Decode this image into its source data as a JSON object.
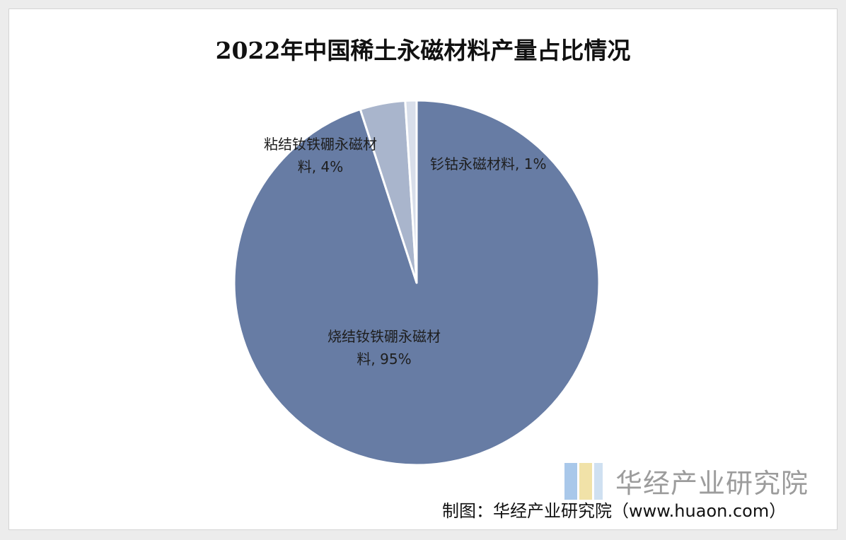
{
  "chart_data": {
    "type": "pie",
    "title": "2022年中国稀土永磁材料产量占比情况",
    "slices": [
      {
        "name": "烧结钕铁硼永磁材料",
        "value": 95,
        "label_lines": [
          "烧结钕铁硼永磁材",
          "料, 95%"
        ],
        "color": "#677ca4"
      },
      {
        "name": "粘结钕铁硼永磁材料",
        "value": 4,
        "label_lines": [
          "粘结钕铁硼永磁材",
          "料, 4%"
        ],
        "color": "#a9b5cc"
      },
      {
        "name": "钐钴永磁材料",
        "value": 1,
        "label_lines": [
          "钐钴永磁材料, 1%"
        ],
        "color": "#d8deea"
      }
    ],
    "start_angle_deg": 0,
    "direction": "clockwise"
  },
  "watermark": {
    "text": "华经产业研究院",
    "icon": "huajing-logo-icon"
  },
  "source_note": "制图：华经产业研究院（www.huaon.com）"
}
